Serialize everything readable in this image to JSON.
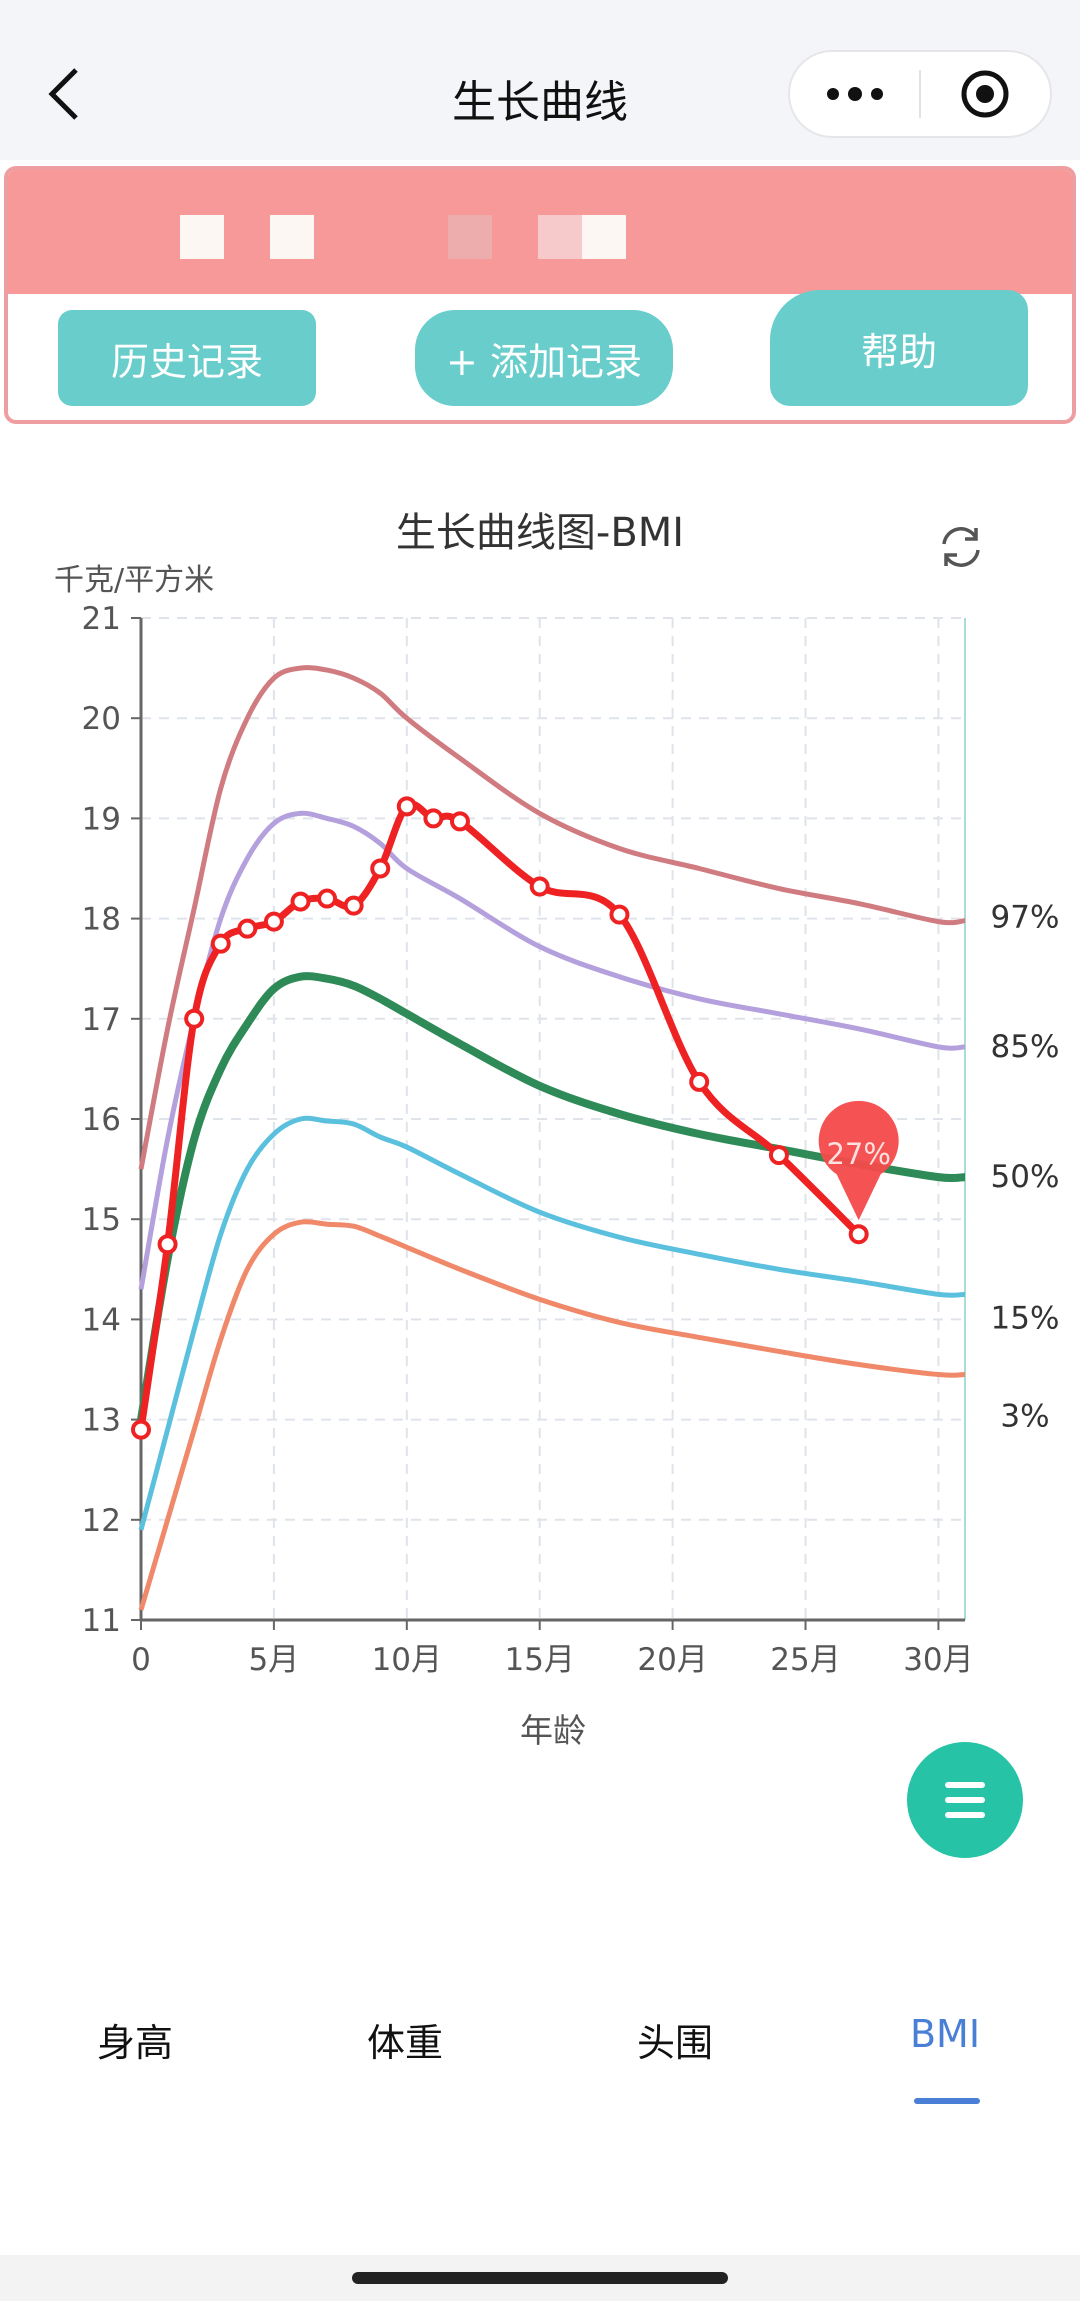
{
  "header": {
    "title": "生长曲线"
  },
  "actions": {
    "history": "历史记录",
    "add": "+ 添加记录",
    "help": "帮助"
  },
  "chart_data": {
    "type": "line",
    "title": "生长曲线图-BMI",
    "ylabel": "千克/平方米",
    "xlabel": "年龄",
    "xlim": [
      0,
      31
    ],
    "ylim": [
      11,
      21
    ],
    "xticks": [
      {
        "v": 0,
        "label": "0"
      },
      {
        "v": 5,
        "label": "5月"
      },
      {
        "v": 10,
        "label": "10月"
      },
      {
        "v": 15,
        "label": "15月"
      },
      {
        "v": 20,
        "label": "20月"
      },
      {
        "v": 25,
        "label": "25月"
      },
      {
        "v": 30,
        "label": "30月"
      }
    ],
    "yticks": [
      11,
      12,
      13,
      14,
      15,
      16,
      17,
      18,
      19,
      20,
      21
    ],
    "grid": true,
    "percentile_x": [
      0,
      1,
      2,
      3,
      4,
      5,
      6,
      7,
      8,
      9,
      10,
      12,
      15,
      18,
      21,
      24,
      27,
      30,
      31
    ],
    "percentiles": [
      {
        "name": "97%",
        "color": "#cf7b80",
        "values": [
          15.5,
          16.9,
          18.1,
          19.3,
          20.0,
          20.4,
          20.5,
          20.48,
          20.4,
          20.25,
          20.0,
          19.6,
          19.05,
          18.7,
          18.5,
          18.3,
          18.15,
          17.97,
          17.98
        ]
      },
      {
        "name": "85%",
        "color": "#b3a0dc",
        "values": [
          14.3,
          15.8,
          17.0,
          18.0,
          18.6,
          18.95,
          19.05,
          19.0,
          18.92,
          18.75,
          18.5,
          18.2,
          17.72,
          17.42,
          17.2,
          17.05,
          16.9,
          16.72,
          16.72
        ]
      },
      {
        "name": "50%",
        "color": "#2e8b57",
        "values": [
          13.0,
          14.6,
          15.8,
          16.5,
          16.95,
          17.3,
          17.42,
          17.4,
          17.33,
          17.2,
          17.05,
          16.75,
          16.33,
          16.05,
          15.85,
          15.7,
          15.55,
          15.42,
          15.42
        ]
      },
      {
        "name": "15%",
        "color": "#5bc0de",
        "values": [
          11.9,
          12.9,
          13.9,
          14.85,
          15.5,
          15.85,
          16.0,
          15.98,
          15.95,
          15.82,
          15.72,
          15.45,
          15.07,
          14.82,
          14.65,
          14.5,
          14.38,
          14.25,
          14.25
        ]
      },
      {
        "name": "3%",
        "color": "#f0886a",
        "values": [
          11.1,
          12.0,
          12.9,
          13.8,
          14.5,
          14.85,
          14.97,
          14.95,
          14.93,
          14.83,
          14.72,
          14.5,
          14.2,
          13.97,
          13.82,
          13.68,
          13.55,
          13.45,
          13.45
        ]
      }
    ],
    "child": {
      "color": "#ee2222",
      "x": [
        0,
        1,
        2,
        3,
        4,
        5,
        6,
        7,
        8,
        9,
        10,
        11,
        12,
        15,
        18,
        21,
        24,
        27
      ],
      "values": [
        12.9,
        14.75,
        17.0,
        17.75,
        17.9,
        17.97,
        18.17,
        18.2,
        18.13,
        18.5,
        19.12,
        19.0,
        18.97,
        18.32,
        18.04,
        16.37,
        15.64,
        14.85
      ]
    },
    "annotation": {
      "x": 27,
      "label": "27%"
    }
  },
  "tabs": [
    {
      "label": "身高"
    },
    {
      "label": "体重"
    },
    {
      "label": "头围"
    },
    {
      "label": "BMI",
      "active": true
    }
  ]
}
